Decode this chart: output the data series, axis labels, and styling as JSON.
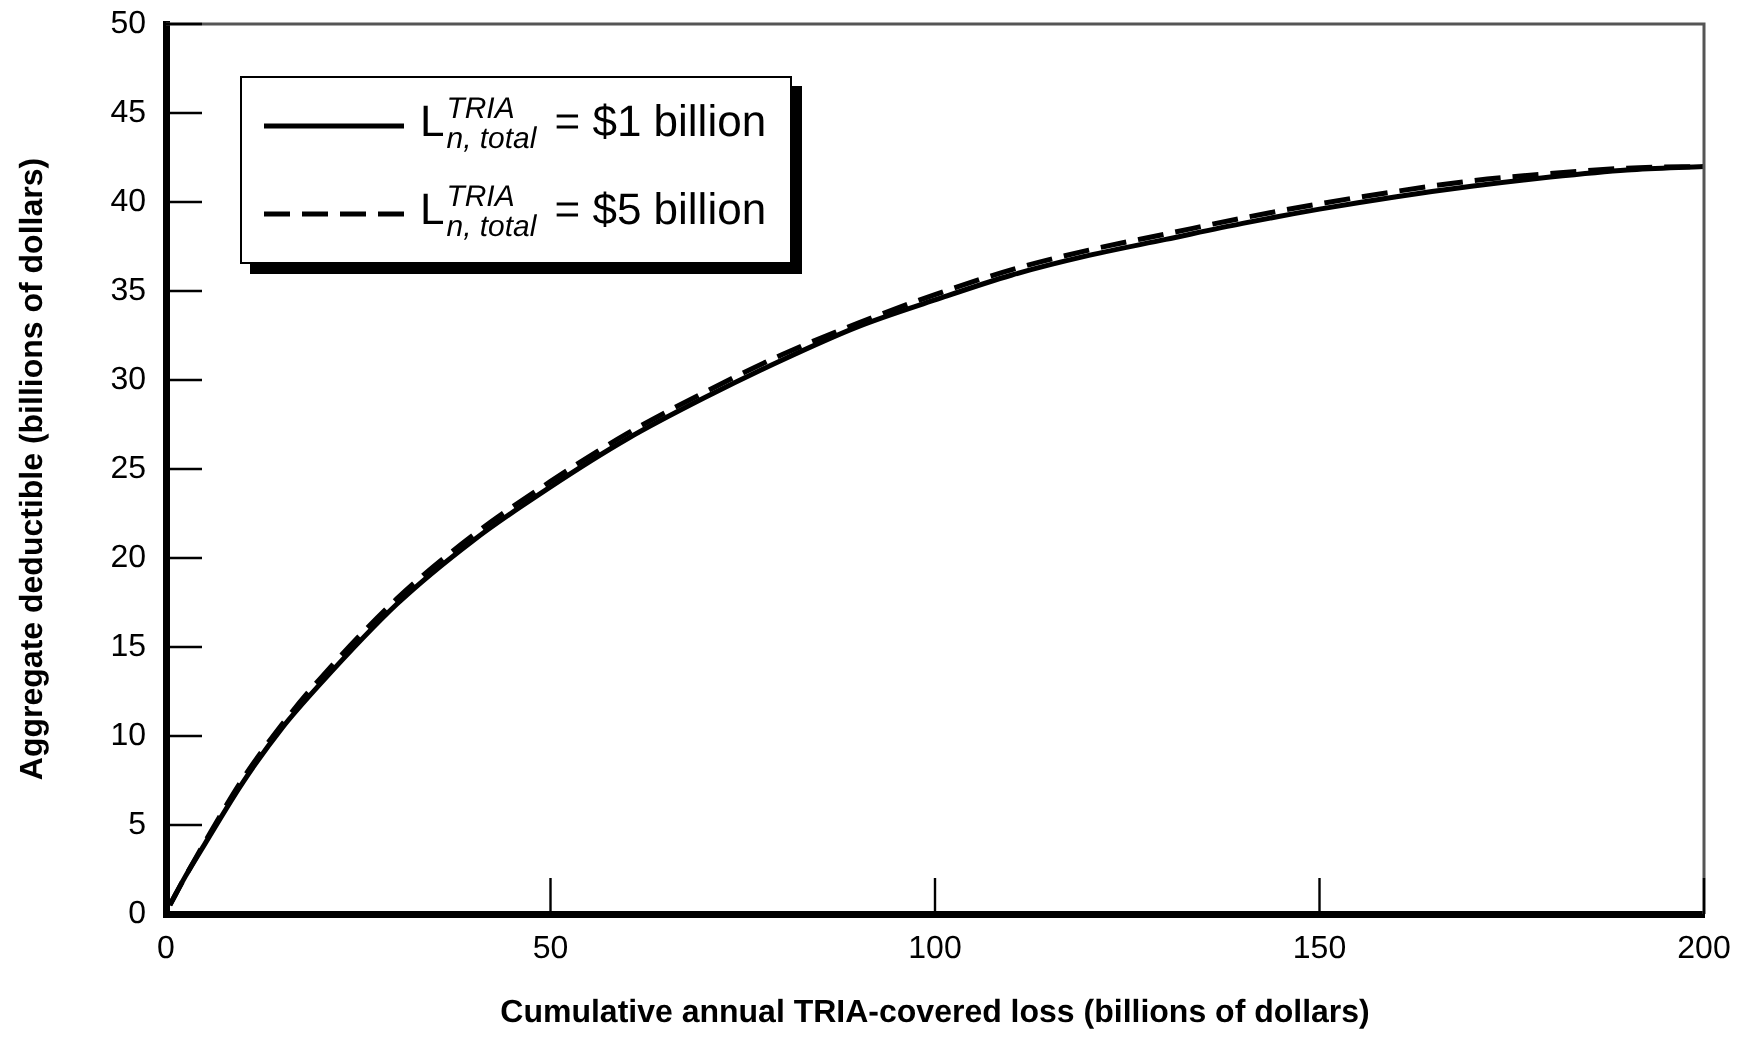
{
  "chart_data": {
    "type": "line",
    "xlabel": "Cumulative annual TRIA-covered loss (billions of dollars)",
    "ylabel": "Aggregate deductible (billions of dollars)",
    "x": [
      0.5,
      2.5,
      5,
      10,
      15,
      20,
      30,
      40,
      50,
      60,
      70,
      80,
      90,
      100,
      110,
      120,
      130,
      140,
      150,
      160,
      170,
      180,
      190,
      200
    ],
    "series": [
      {
        "name": "L$^{TRIA}$$_{n, total}$ = $1 billion",
        "color": "#000000",
        "line_style": "solid",
        "values": [
          0.5,
          2.1,
          3.9,
          7.4,
          10.4,
          12.9,
          17.4,
          21.0,
          24.0,
          26.7,
          29.0,
          31.1,
          33.0,
          34.5,
          35.9,
          37.0,
          37.9,
          38.8,
          39.6,
          40.3,
          40.9,
          41.4,
          41.8,
          42.0
        ]
      },
      {
        "name": "L$^{TRIA}$$_{n, total}$ = $5 billion",
        "color": "#000000",
        "line_style": "dashed",
        "values": [
          0.5,
          2.1,
          4.0,
          7.6,
          10.6,
          13.2,
          17.7,
          21.3,
          24.3,
          27.0,
          29.3,
          31.4,
          33.2,
          34.8,
          36.2,
          37.3,
          38.2,
          39.1,
          39.9,
          40.6,
          41.2,
          41.6,
          41.9,
          42.0
        ]
      }
    ],
    "xlim": [
      0,
      200
    ],
    "xticks": [
      0,
      50,
      100,
      150,
      200
    ],
    "ylim": [
      0,
      50
    ],
    "yticks": [
      0,
      5,
      10,
      15,
      20,
      25,
      30,
      35,
      40,
      45,
      50
    ],
    "grid": false,
    "legend": "top left",
    "marker": "none"
  }
}
